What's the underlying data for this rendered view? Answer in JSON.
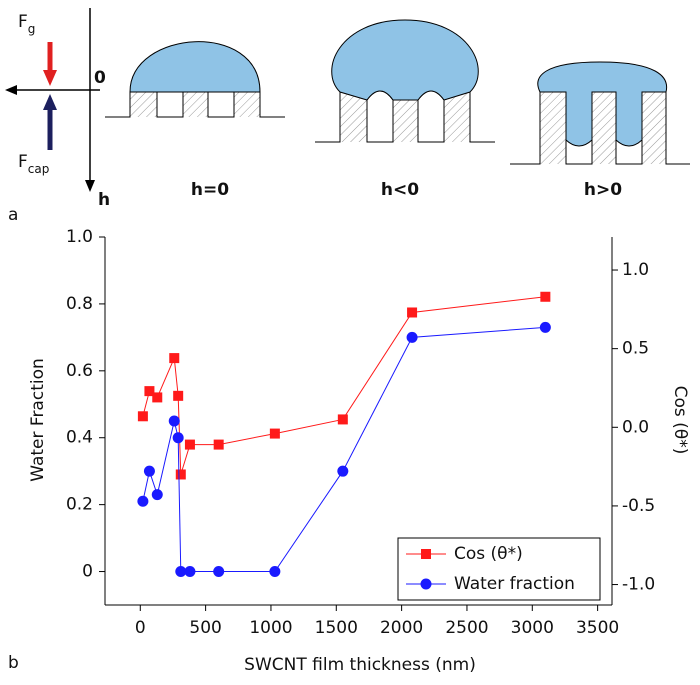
{
  "diagram": {
    "force_gravity": {
      "symbol": "F",
      "subscript": "g"
    },
    "force_capillary": {
      "symbol": "F",
      "subscript": "cap"
    },
    "origin_label": "0",
    "axis_label": "h",
    "states": [
      "h=0",
      "h<0",
      "h>0"
    ],
    "panel_label": "a"
  },
  "chart_data": {
    "type": "line",
    "panel_label": "b",
    "x_label": "SWCNT film thickness (nm)",
    "y_label": "Water Fraction",
    "y2_label": "Cos (θ*)",
    "x": [
      20,
      70,
      130,
      260,
      290,
      310,
      380,
      600,
      1030,
      1550,
      2080,
      3100
    ],
    "series": [
      {
        "name": "Cos (θ*)",
        "color": "#ff1a1a",
        "marker": "square",
        "axis": "y2",
        "values": [
          0.07,
          0.23,
          0.19,
          0.44,
          0.2,
          -0.3,
          -0.11,
          -0.11,
          -0.04,
          0.05,
          0.73,
          0.83
        ]
      },
      {
        "name": "Water fraction",
        "color": "#1a1aff",
        "marker": "circle",
        "values": [
          0.21,
          0.3,
          0.23,
          0.45,
          0.4,
          0,
          0,
          0,
          0,
          0.3,
          0.7,
          0.73
        ]
      }
    ],
    "xlim": [
      -270,
      3610
    ],
    "xticks": [
      0,
      500,
      1000,
      1500,
      2000,
      2500,
      3000,
      3500
    ],
    "ylim": [
      -0.1,
      1.0
    ],
    "yticks": [
      0,
      0.2,
      0.4,
      0.6,
      0.8,
      {
        "value": 1,
        "label": "1.0"
      }
    ],
    "y2lim": [
      -1.13,
      1.21
    ],
    "y2ticks": [
      {
        "value": 1,
        "label": "1.0"
      },
      0.5,
      {
        "value": 0,
        "label": "0.0"
      },
      -0.5,
      {
        "value": -1,
        "label": "-1.0"
      }
    ],
    "legend": "lower right"
  }
}
